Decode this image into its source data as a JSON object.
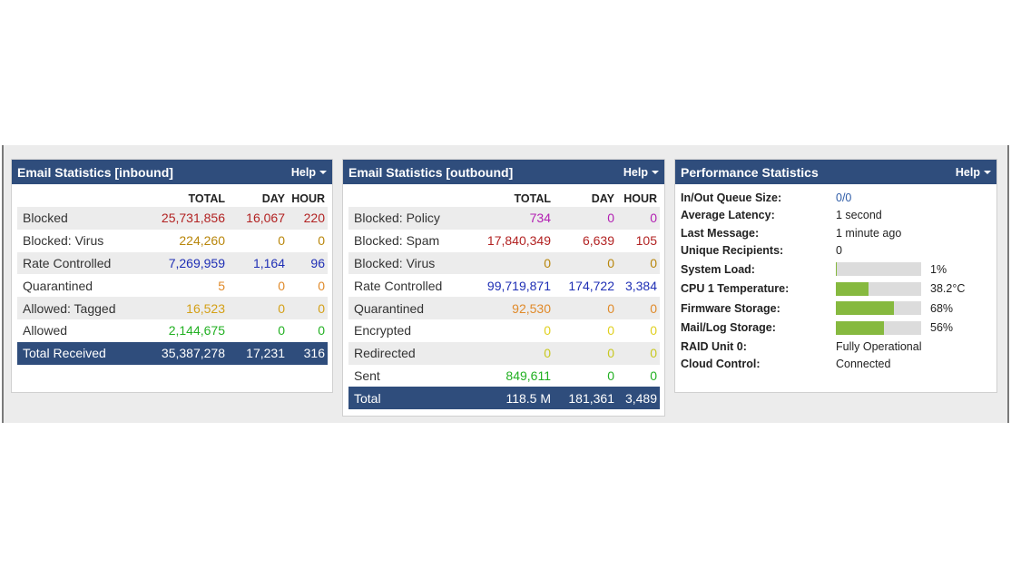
{
  "inbound": {
    "title": "Email Statistics [inbound]",
    "help": "Help",
    "columns": [
      "TOTAL",
      "DAY",
      "HOUR"
    ],
    "rows": [
      {
        "label": "Blocked",
        "total": "25,731,856",
        "day": "16,067",
        "hour": "220",
        "color": "#b22222"
      },
      {
        "label": "Blocked: Virus",
        "total": "224,260",
        "day": "0",
        "hour": "0",
        "color": "#b8860b"
      },
      {
        "label": "Rate Controlled",
        "total": "7,269,959",
        "day": "1,164",
        "hour": "96",
        "color": "#1f2fb5"
      },
      {
        "label": "Quarantined",
        "total": "5",
        "day": "0",
        "hour": "0",
        "color": "#e08a2a"
      },
      {
        "label": "Allowed: Tagged",
        "total": "16,523",
        "day": "0",
        "hour": "0",
        "color": "#d4a017"
      },
      {
        "label": "Allowed",
        "total": "2,144,675",
        "day": "0",
        "hour": "0",
        "color": "#22b022"
      }
    ],
    "total": {
      "label": "Total Received",
      "total": "35,387,278",
      "day": "17,231",
      "hour": "316"
    }
  },
  "outbound": {
    "title": "Email Statistics [outbound]",
    "help": "Help",
    "columns": [
      "TOTAL",
      "DAY",
      "HOUR"
    ],
    "rows": [
      {
        "label": "Blocked: Policy",
        "total": "734",
        "day": "0",
        "hour": "0",
        "color": "#b21fb2"
      },
      {
        "label": "Blocked: Spam",
        "total": "17,840,349",
        "day": "6,639",
        "hour": "105",
        "color": "#b22222"
      },
      {
        "label": "Blocked: Virus",
        "total": "0",
        "day": "0",
        "hour": "0",
        "color": "#b8860b"
      },
      {
        "label": "Rate Controlled",
        "total": "99,719,871",
        "day": "174,722",
        "hour": "3,384",
        "color": "#1f2fb5"
      },
      {
        "label": "Quarantined",
        "total": "92,530",
        "day": "0",
        "hour": "0",
        "color": "#e08a2a"
      },
      {
        "label": "Encrypted",
        "total": "0",
        "day": "0",
        "hour": "0",
        "color": "#e0d020"
      },
      {
        "label": "Redirected",
        "total": "0",
        "day": "0",
        "hour": "0",
        "color": "#c8c820"
      },
      {
        "label": "Sent",
        "total": "849,611",
        "day": "0",
        "hour": "0",
        "color": "#22b022"
      }
    ],
    "total": {
      "label": "Total",
      "total": "118.5 M",
      "day": "181,361",
      "hour": "3,489"
    }
  },
  "performance": {
    "title": "Performance Statistics",
    "help": "Help",
    "rows": [
      {
        "label": "In/Out Queue Size:",
        "value": "0/0",
        "link": true
      },
      {
        "label": "Average Latency:",
        "value": "1 second"
      },
      {
        "label": "Last Message:",
        "value": "1 minute ago"
      },
      {
        "label": "Unique Recipients:",
        "value": "0"
      },
      {
        "label": "System Load:",
        "value": "1%",
        "bar": 0.01
      },
      {
        "label": "CPU 1 Temperature:",
        "value": "38.2°C",
        "bar": 0.38
      },
      {
        "label": "Firmware Storage:",
        "value": "68%",
        "bar": 0.68
      },
      {
        "label": "Mail/Log Storage:",
        "value": "56%",
        "bar": 0.56
      },
      {
        "label": "RAID Unit 0:",
        "value": "Fully Operational"
      },
      {
        "label": "Cloud Control:",
        "value": "Connected"
      }
    ]
  }
}
